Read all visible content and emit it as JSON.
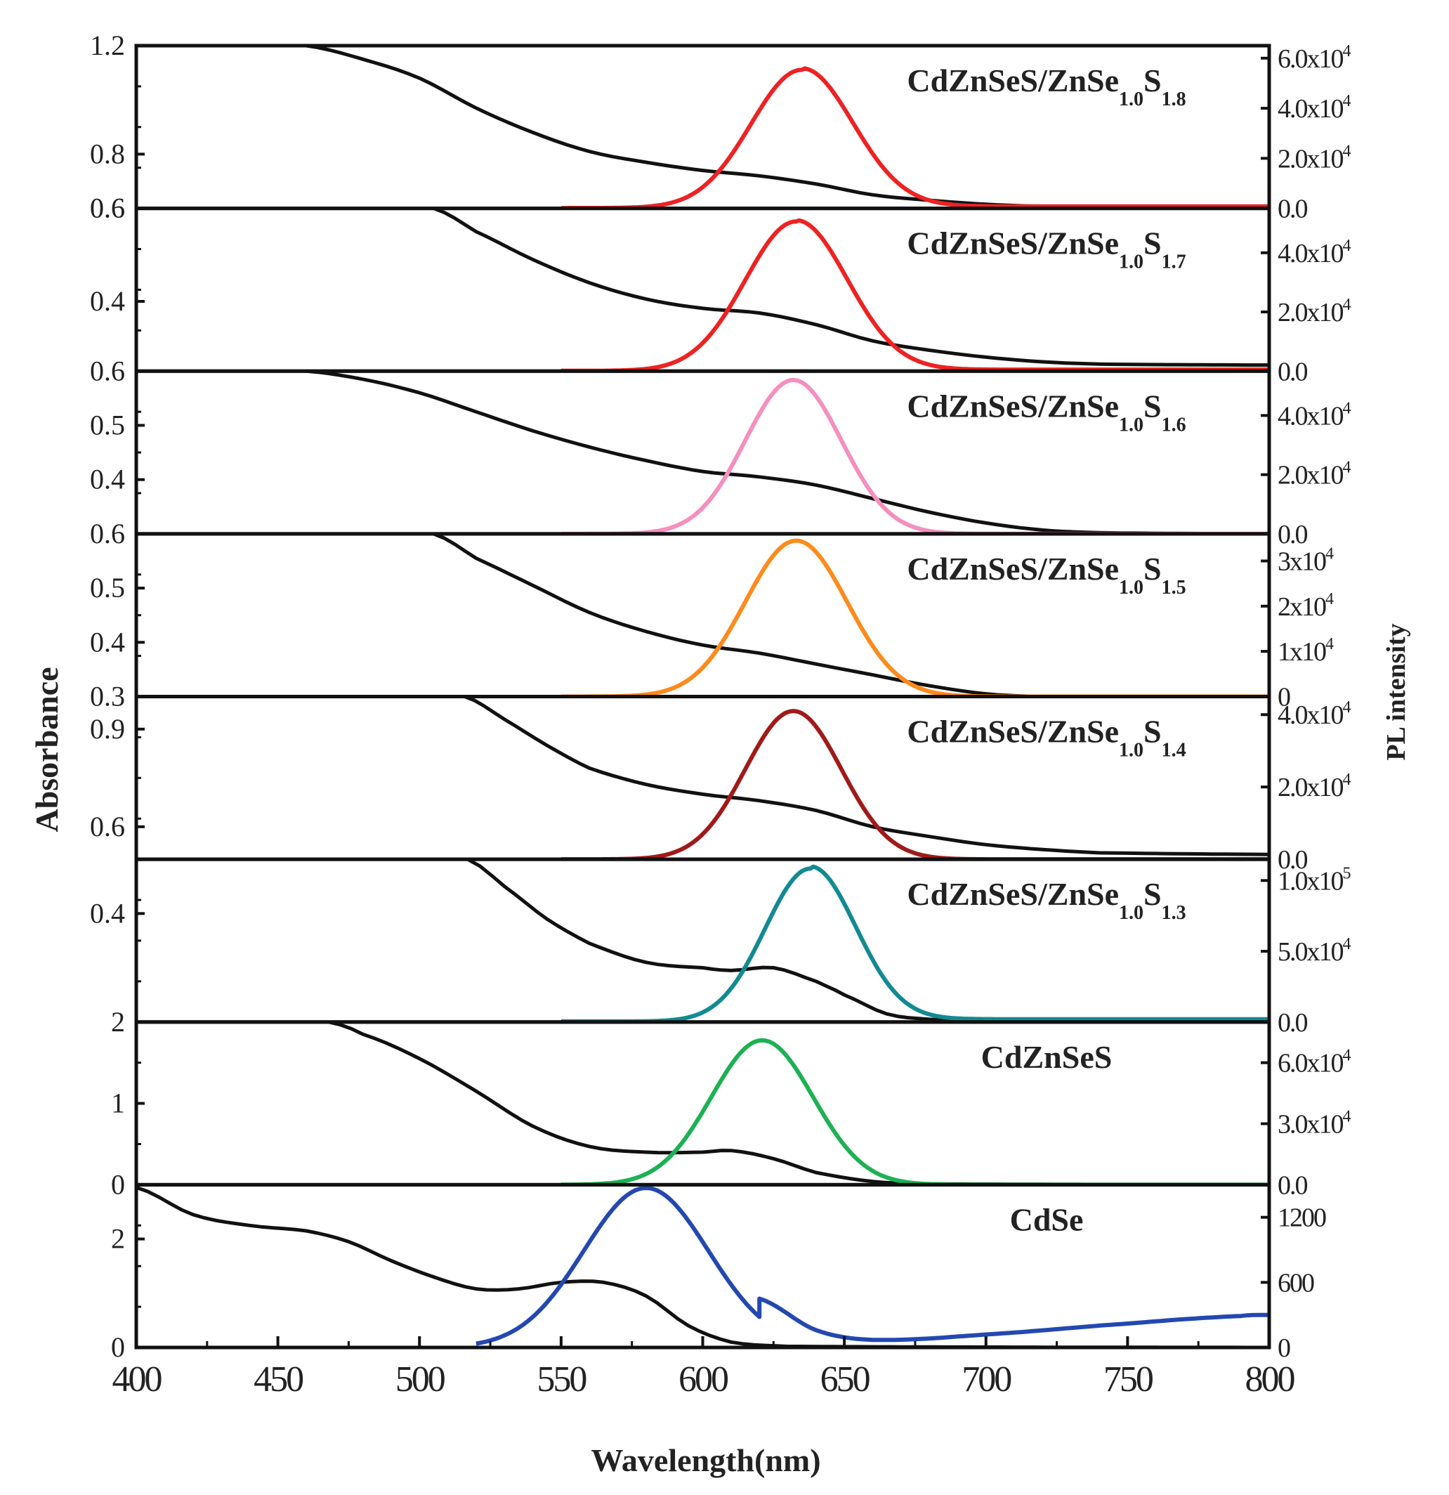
{
  "chart_data": {
    "type": "line",
    "xlabel": "Wavelength(nm)",
    "ylabel_left": "Absorbance",
    "ylabel_right": "PL intensity",
    "xlim": [
      400,
      800
    ],
    "xticks": [
      "400",
      "450",
      "500",
      "550",
      "600",
      "650",
      "700",
      "750",
      "800"
    ],
    "xtick_values": [
      400,
      450,
      500,
      550,
      600,
      650,
      700,
      750,
      800
    ],
    "panels": [
      {
        "id": "p1",
        "label_main": "CdZnSeS/ZnSe",
        "label_sub1": "1.0",
        "label_mid": "S",
        "label_sub2": "1.8",
        "pl_color": "#ee2222",
        "abs_range": [
          0.6,
          1.2
        ],
        "abs_ticks": [
          {
            "v": 1.2,
            "t": "1.2"
          },
          {
            "v": 0.8,
            "t": "0.8"
          },
          {
            "v": 0.6,
            "t": "0.6"
          }
        ],
        "pl_range": [
          0,
          65000
        ],
        "pl_ticks": [
          {
            "v": 60000,
            "m": "6.0x10",
            "e": "4"
          },
          {
            "v": 40000,
            "m": "4.0x10",
            "e": "4"
          },
          {
            "v": 20000,
            "m": "2.0x10",
            "e": "4"
          },
          {
            "v": 0,
            "m": "0.0",
            "e": ""
          }
        ],
        "pl_x_start": 550,
        "pl_peak": {
          "x": 635,
          "y": 56000,
          "sigma": 18
        },
        "pl_baseline": 800,
        "abs_curve": [
          [
            460,
            1.2
          ],
          [
            480,
            1.15
          ],
          [
            500,
            1.08
          ],
          [
            520,
            0.97
          ],
          [
            540,
            0.88
          ],
          [
            560,
            0.81
          ],
          [
            580,
            0.77
          ],
          [
            600,
            0.74
          ],
          [
            620,
            0.72
          ],
          [
            640,
            0.69
          ],
          [
            660,
            0.65
          ],
          [
            680,
            0.63
          ],
          [
            700,
            0.615
          ],
          [
            720,
            0.607
          ],
          [
            740,
            0.603
          ],
          [
            800,
            0.601
          ]
        ]
      },
      {
        "id": "p2",
        "label_main": "CdZnSeS/ZnSe",
        "label_sub1": "1.0",
        "label_mid": "S",
        "label_sub2": "1.7",
        "pl_color": "#ee2222",
        "abs_range": [
          0.25,
          0.6
        ],
        "abs_ticks": [
          {
            "v": 0.6,
            "t": "0.6"
          },
          {
            "v": 0.4,
            "t": "0.4"
          }
        ],
        "pl_range": [
          0,
          55000
        ],
        "pl_ticks": [
          {
            "v": 40000,
            "m": "4.0x10",
            "e": "4"
          },
          {
            "v": 20000,
            "m": "2.0x10",
            "e": "4"
          },
          {
            "v": 0,
            "m": "0.0",
            "e": ""
          }
        ],
        "pl_x_start": 550,
        "pl_peak": {
          "x": 633,
          "y": 51000,
          "sigma": 18
        },
        "pl_baseline": 500,
        "abs_curve": [
          [
            505,
            0.6
          ],
          [
            520,
            0.55
          ],
          [
            540,
            0.49
          ],
          [
            560,
            0.44
          ],
          [
            580,
            0.405
          ],
          [
            600,
            0.385
          ],
          [
            620,
            0.375
          ],
          [
            640,
            0.35
          ],
          [
            660,
            0.315
          ],
          [
            680,
            0.295
          ],
          [
            700,
            0.28
          ],
          [
            720,
            0.27
          ],
          [
            740,
            0.265
          ],
          [
            800,
            0.263
          ]
        ]
      },
      {
        "id": "p3",
        "label_main": "CdZnSeS/ZnSe",
        "label_sub1": "1.0",
        "label_mid": "S",
        "label_sub2": "1.6",
        "pl_color": "#f48fbf",
        "abs_range": [
          0.3,
          0.6
        ],
        "abs_ticks": [
          {
            "v": 0.6,
            "t": "0.6"
          },
          {
            "v": 0.5,
            "t": "0.5"
          },
          {
            "v": 0.4,
            "t": "0.4"
          }
        ],
        "pl_range": [
          0,
          55000
        ],
        "pl_ticks": [
          {
            "v": 40000,
            "m": "4.0x10",
            "e": "4"
          },
          {
            "v": 20000,
            "m": "2.0x10",
            "e": "4"
          },
          {
            "v": 0,
            "m": "0.0",
            "e": ""
          }
        ],
        "pl_x_start": 550,
        "pl_peak": {
          "x": 632,
          "y": 52000,
          "sigma": 17
        },
        "pl_baseline": 0,
        "abs_curve": [
          [
            460,
            0.6
          ],
          [
            480,
            0.585
          ],
          [
            500,
            0.56
          ],
          [
            520,
            0.525
          ],
          [
            540,
            0.49
          ],
          [
            560,
            0.46
          ],
          [
            580,
            0.435
          ],
          [
            600,
            0.415
          ],
          [
            620,
            0.405
          ],
          [
            640,
            0.39
          ],
          [
            660,
            0.365
          ],
          [
            680,
            0.34
          ],
          [
            700,
            0.32
          ],
          [
            720,
            0.307
          ],
          [
            740,
            0.302
          ],
          [
            800,
            0.3
          ]
        ]
      },
      {
        "id": "p4",
        "label_main": "CdZnSeS/ZnSe",
        "label_sub1": "1.0",
        "label_mid": "S",
        "label_sub2": "1.5",
        "pl_color": "#ff8a1c",
        "abs_range": [
          0.3,
          0.6
        ],
        "abs_ticks": [
          {
            "v": 0.6,
            "t": "0.6"
          },
          {
            "v": 0.5,
            "t": "0.5"
          },
          {
            "v": 0.4,
            "t": "0.4"
          },
          {
            "v": 0.3,
            "t": "0.3"
          }
        ],
        "pl_range": [
          0,
          36000
        ],
        "pl_ticks": [
          {
            "v": 30000,
            "m": "3x10",
            "e": "4"
          },
          {
            "v": 20000,
            "m": "2x10",
            "e": "4"
          },
          {
            "v": 10000,
            "m": "1x10",
            "e": "4"
          },
          {
            "v": 0,
            "m": "0",
            "e": ""
          }
        ],
        "pl_x_start": 550,
        "pl_peak": {
          "x": 633,
          "y": 34500,
          "sigma": 18
        },
        "pl_baseline": 0,
        "abs_curve": [
          [
            505,
            0.6
          ],
          [
            520,
            0.555
          ],
          [
            540,
            0.505
          ],
          [
            560,
            0.455
          ],
          [
            580,
            0.42
          ],
          [
            600,
            0.395
          ],
          [
            620,
            0.38
          ],
          [
            640,
            0.36
          ],
          [
            660,
            0.34
          ],
          [
            680,
            0.32
          ],
          [
            700,
            0.305
          ],
          [
            720,
            0.3
          ],
          [
            800,
            0.3
          ]
        ]
      },
      {
        "id": "p5",
        "label_main": "CdZnSeS/ZnSe",
        "label_sub1": "1.0",
        "label_mid": "S",
        "label_sub2": "1.4",
        "pl_color": "#a01a1a",
        "abs_range": [
          0.5,
          1.0
        ],
        "abs_ticks": [
          {
            "v": 0.9,
            "t": "0.9"
          },
          {
            "v": 0.6,
            "t": "0.6"
          }
        ],
        "pl_range": [
          0,
          45000
        ],
        "pl_ticks": [
          {
            "v": 40000,
            "m": "4.0x10",
            "e": "4"
          },
          {
            "v": 20000,
            "m": "2.0x10",
            "e": "4"
          },
          {
            "v": 0,
            "m": "0.0",
            "e": ""
          }
        ],
        "pl_x_start": 550,
        "pl_peak": {
          "x": 632,
          "y": 41000,
          "sigma": 17
        },
        "pl_baseline": 0,
        "abs_curve": [
          [
            516,
            1.0
          ],
          [
            530,
            0.93
          ],
          [
            545,
            0.85
          ],
          [
            560,
            0.78
          ],
          [
            580,
            0.73
          ],
          [
            600,
            0.7
          ],
          [
            620,
            0.68
          ],
          [
            640,
            0.65
          ],
          [
            660,
            0.6
          ],
          [
            680,
            0.57
          ],
          [
            700,
            0.545
          ],
          [
            720,
            0.53
          ],
          [
            740,
            0.52
          ],
          [
            800,
            0.515
          ]
        ]
      },
      {
        "id": "p6",
        "label_main": "CdZnSeS/ZnSe",
        "label_sub1": "1.0",
        "label_mid": "S",
        "label_sub2": "1.3",
        "pl_color": "#128a92",
        "abs_range": [
          0.2,
          0.5
        ],
        "abs_ticks": [
          {
            "v": 0.4,
            "t": "0.4"
          }
        ],
        "pl_range": [
          0,
          115000
        ],
        "pl_ticks": [
          {
            "v": 100000,
            "m": "1.0x10",
            "e": "5"
          },
          {
            "v": 50000,
            "m": "5.0x10",
            "e": "4"
          },
          {
            "v": 0,
            "m": "0.0",
            "e": ""
          }
        ],
        "pl_x_start": 550,
        "pl_peak": {
          "x": 638,
          "y": 110000,
          "sigma": 16
        },
        "pl_baseline": 2000,
        "abs_curve": [
          [
            517,
            0.5
          ],
          [
            530,
            0.45
          ],
          [
            545,
            0.39
          ],
          [
            560,
            0.345
          ],
          [
            580,
            0.31
          ],
          [
            600,
            0.3
          ],
          [
            610,
            0.295
          ],
          [
            625,
            0.3
          ],
          [
            640,
            0.275
          ],
          [
            650,
            0.25
          ],
          [
            665,
            0.215
          ],
          [
            680,
            0.205
          ],
          [
            700,
            0.203
          ],
          [
            800,
            0.203
          ]
        ]
      },
      {
        "id": "p7",
        "label_main": "CdZnSeS",
        "label_sub1": "",
        "label_mid": "",
        "label_sub2": "",
        "pl_color": "#1db154",
        "abs_range": [
          0,
          2
        ],
        "abs_ticks": [
          {
            "v": 2,
            "t": "2"
          },
          {
            "v": 1,
            "t": "1"
          },
          {
            "v": 0,
            "t": "0"
          }
        ],
        "pl_range": [
          0,
          80000
        ],
        "pl_ticks": [
          {
            "v": 60000,
            "m": "6.0x10",
            "e": "4"
          },
          {
            "v": 30000,
            "m": "3.0x10",
            "e": "4"
          },
          {
            "v": 0,
            "m": "0.0",
            "e": ""
          }
        ],
        "pl_x_start": 550,
        "pl_peak": {
          "x": 621,
          "y": 71000,
          "sigma": 18
        },
        "pl_baseline": 0,
        "abs_curve": [
          [
            468,
            2.0
          ],
          [
            480,
            1.85
          ],
          [
            500,
            1.55
          ],
          [
            520,
            1.15
          ],
          [
            540,
            0.72
          ],
          [
            560,
            0.47
          ],
          [
            580,
            0.4
          ],
          [
            600,
            0.4
          ],
          [
            610,
            0.42
          ],
          [
            625,
            0.32
          ],
          [
            640,
            0.15
          ],
          [
            660,
            0.04
          ],
          [
            680,
            0.01
          ],
          [
            800,
            0.0
          ]
        ]
      },
      {
        "id": "p8",
        "label_main": "CdSe",
        "label_sub1": "",
        "label_mid": "",
        "label_sub2": "",
        "pl_color": "#2348b0",
        "abs_range": [
          0,
          3
        ],
        "abs_ticks": [
          {
            "v": 2,
            "t": "2"
          },
          {
            "v": 0,
            "t": "0"
          }
        ],
        "pl_range": [
          0,
          1500
        ],
        "pl_ticks": [
          {
            "v": 1200,
            "m": "1200",
            "e": ""
          },
          {
            "v": 600,
            "m": "600",
            "e": ""
          },
          {
            "v": 0,
            "m": "0",
            "e": ""
          }
        ],
        "pl_x_start": 520,
        "pl_peak": {
          "x": 580,
          "y": 1470,
          "sigma": 22
        },
        "pl_baseline": 0,
        "pl_tail": [
          [
            620,
            450
          ],
          [
            640,
            160
          ],
          [
            660,
            70
          ],
          [
            700,
            120
          ],
          [
            750,
            220
          ],
          [
            790,
            290
          ],
          [
            800,
            300
          ]
        ],
        "abs_curve": [
          [
            400,
            2.95
          ],
          [
            420,
            2.45
          ],
          [
            440,
            2.25
          ],
          [
            460,
            2.15
          ],
          [
            475,
            1.95
          ],
          [
            490,
            1.6
          ],
          [
            505,
            1.3
          ],
          [
            520,
            1.08
          ],
          [
            535,
            1.08
          ],
          [
            550,
            1.2
          ],
          [
            565,
            1.2
          ],
          [
            580,
            0.95
          ],
          [
            595,
            0.4
          ],
          [
            610,
            0.1
          ],
          [
            630,
            0.02
          ],
          [
            800,
            0.0
          ]
        ]
      }
    ]
  }
}
